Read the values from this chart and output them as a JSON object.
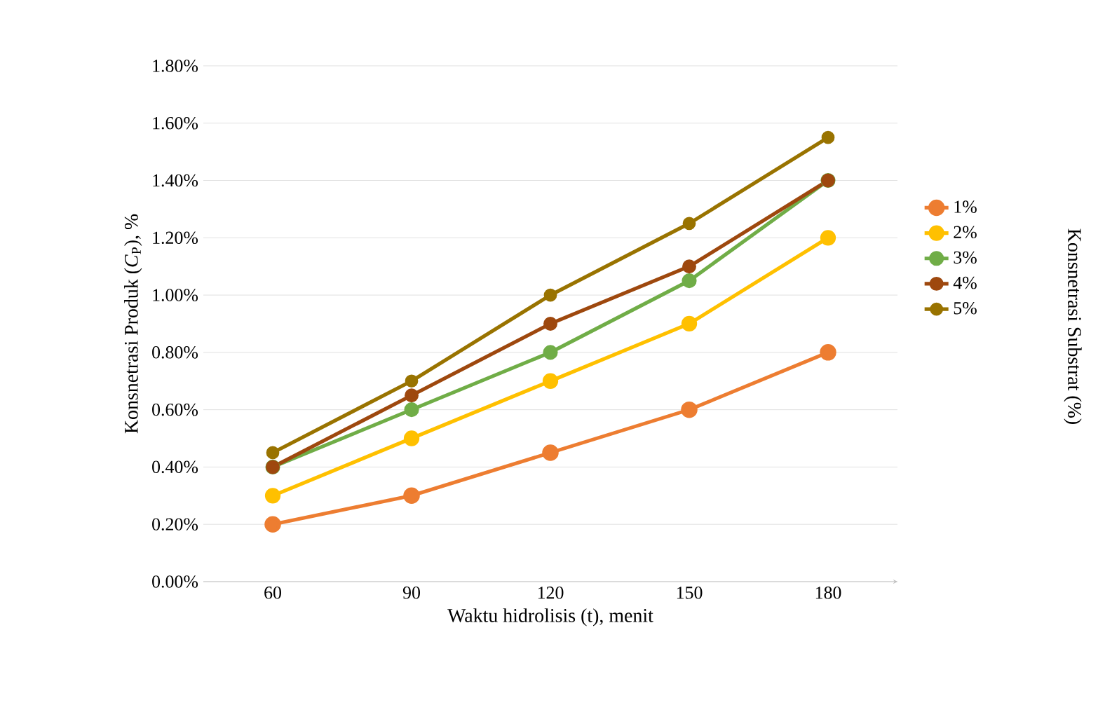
{
  "chart_data": {
    "type": "line",
    "xlabel": "Waktu hidrolisis (t), menit",
    "ylabel": "Konsnetrasi Produk (*C*$_{P}$), %",
    "legend_title": "Konsnetrasi Substrat (%)",
    "categories": [
      "60",
      "90",
      "120",
      "150",
      "180"
    ],
    "series": [
      {
        "name": "1%",
        "color": "#ed7d31",
        "values": [
          0.2,
          0.3,
          0.45,
          0.6,
          0.8
        ]
      },
      {
        "name": "2%",
        "color": "#ffc000",
        "values": [
          0.3,
          0.5,
          0.7,
          0.9,
          1.2
        ]
      },
      {
        "name": "3%",
        "color": "#70ad47",
        "values": [
          0.4,
          0.6,
          0.8,
          1.05,
          1.4
        ]
      },
      {
        "name": "4%",
        "color": "#9e480e",
        "values": [
          0.4,
          0.65,
          0.9,
          1.1,
          1.4
        ]
      },
      {
        "name": "5%",
        "color": "#997300",
        "values": [
          0.45,
          0.7,
          1.0,
          1.25,
          1.55
        ]
      }
    ],
    "ylim": [
      0,
      1.8
    ],
    "yticks": [
      {
        "value": 0,
        "label": "0.00%"
      },
      {
        "value": 0.2,
        "label": "0.20%"
      },
      {
        "value": 0.4,
        "label": "0.40%"
      },
      {
        "value": 0.6,
        "label": "0.60%"
      },
      {
        "value": 0.8,
        "label": "0.80%"
      },
      {
        "value": 1.0,
        "label": "1.00%"
      },
      {
        "value": 1.2,
        "label": "1.20%"
      },
      {
        "value": 1.4,
        "label": "1.40%"
      },
      {
        "value": 1.6,
        "label": "1.60%"
      },
      {
        "value": 1.8,
        "label": "1.80%"
      }
    ],
    "grid": "y",
    "legend": "right",
    "marker": "circle"
  }
}
